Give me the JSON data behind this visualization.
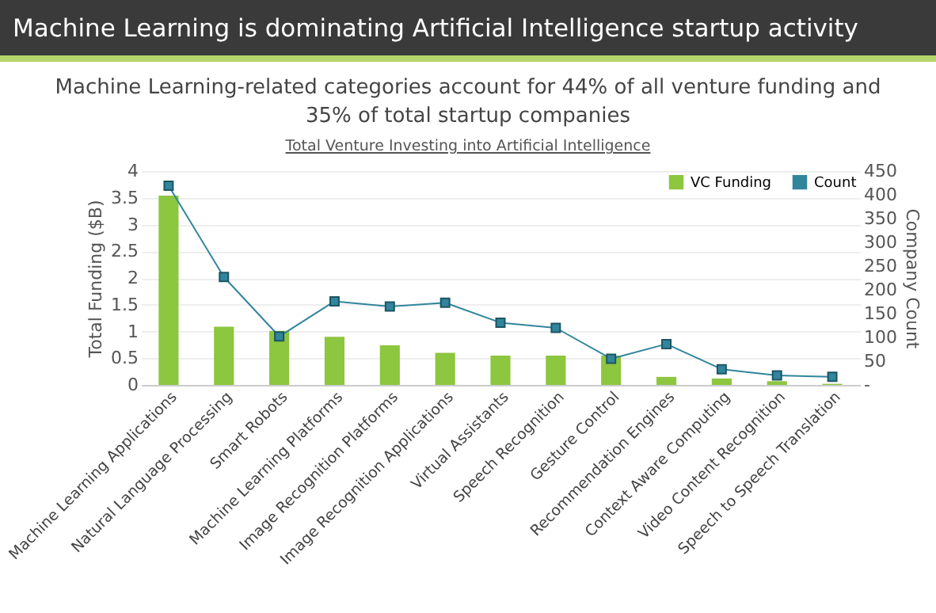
{
  "chart_data": {
    "type": "bar",
    "title": "Machine Learning is dominating Artificial Intelligence startup activity",
    "subtitle": "Machine Learning-related categories account for 44% of all venture funding and 35% of total startup companies",
    "annotations": [
      "Total Venture Investing into Artificial Intelligence"
    ],
    "categories": [
      "Machine Learning Applications",
      "Natural Language Processing",
      "Smart Robots",
      "Machine Learning Platforms",
      "Image Recognition Platforms",
      "Image Recognition Applications",
      "Virtual Assistants",
      "Speech Recognition",
      "Gesture Control",
      "Recommendation Engines",
      "Context Aware Computing",
      "Video Content Recognition",
      "Speech to Speech Translation"
    ],
    "series": [
      {
        "name": "VC Funding",
        "color": "#8dc63f",
        "values": [
          3.54,
          1.09,
          1.01,
          0.9,
          0.74,
          0.6,
          0.55,
          0.55,
          0.55,
          0.15,
          0.12,
          0.07,
          0.02
        ]
      },
      {
        "name": "Count",
        "type": "line",
        "axis": "y2",
        "color": "#31859c",
        "values": [
          419,
          227,
          102,
          176,
          165,
          173,
          131,
          120,
          55,
          86,
          33,
          20,
          17
        ]
      }
    ],
    "ylabel": "Total Funding ($B)",
    "y2label": "Company Count",
    "ylim": [
      0,
      4
    ],
    "yticks": [
      0,
      0.5,
      1,
      1.5,
      2,
      2.5,
      3,
      3.5,
      4
    ],
    "y2lim": [
      0,
      450
    ],
    "y2ticks": [
      {
        "value": 0,
        "label": "-"
      },
      50,
      100,
      150,
      200,
      250,
      300,
      350,
      400,
      450
    ],
    "grid": "y",
    "legend": "top right",
    "marker": "square"
  }
}
